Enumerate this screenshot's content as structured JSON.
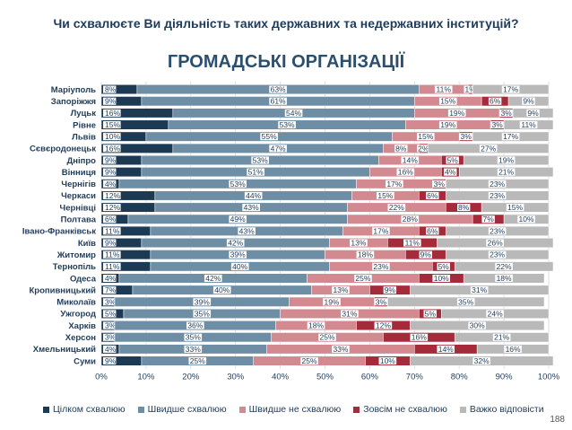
{
  "question": "Чи схвалюєте Ви діяльність таких державних та недержавних інституцій?",
  "subtitle": "ГРОМАДСЬКІ ОРГАНІЗАЦІЇ",
  "page_number": "188",
  "colors": {
    "full_approve": "#1d3a54",
    "rather_approve": "#6e8ea6",
    "rather_disapprove": "#d28a90",
    "full_disapprove": "#a52a3a",
    "hard_to_say": "#b9b9b9"
  },
  "legend": [
    {
      "label": "Цілком схвалюю",
      "color": "#1d3a54"
    },
    {
      "label": "Швидше схвалюю",
      "color": "#6e8ea6"
    },
    {
      "label": "Швидше не схвалюю",
      "color": "#d28a90"
    },
    {
      "label": "Зовсім не схвалюю",
      "color": "#a52a3a"
    },
    {
      "label": "Важко відповісти",
      "color": "#b9b9b9"
    }
  ],
  "chart_data": {
    "type": "bar",
    "orientation": "horizontal",
    "stacked": true,
    "title": "ГРОМАДСЬКІ ОРГАНІЗАЦІЇ",
    "xlim": [
      0,
      100
    ],
    "x_ticks": [
      "0%",
      "10%",
      "20%",
      "30%",
      "40%",
      "50%",
      "60%",
      "70%",
      "80%",
      "90%",
      "100%"
    ],
    "grid": true,
    "legend_position": "bottom",
    "categories": [
      "Маріуполь",
      "Запоріжжя",
      "Луцьк",
      "Рівне",
      "Львів",
      "Сєвєродонецьк",
      "Дніпро",
      "Вінниця",
      "Чернігів",
      "Черкаси",
      "Чернівці",
      "Полтава",
      "Івано-Франківськ",
      "Київ",
      "Житомир",
      "Тернопіль",
      "Одеса",
      "Кропивницький",
      "Миколаїв",
      "Ужгород",
      "Харків",
      "Херсон",
      "Хмельницький",
      "Суми"
    ],
    "series": [
      {
        "name": "Цілком схвалюю",
        "values": [
          8,
          9,
          16,
          15,
          10,
          16,
          9,
          9,
          4,
          12,
          12,
          6,
          11,
          9,
          11,
          11,
          4,
          7,
          3,
          5,
          3,
          3,
          4,
          9
        ],
        "labels": [
          "8%",
          "9%",
          "16%",
          "15%",
          "10%",
          "16%",
          "9%",
          "9%",
          "4%",
          "12%",
          "12%",
          "6%",
          "11%",
          "9%",
          "11%",
          "11%",
          "4%",
          "7%",
          "3%",
          "5%",
          "3%",
          "3%",
          "4%",
          "9%"
        ]
      },
      {
        "name": "Швидше схвалюю",
        "values": [
          63,
          61,
          54,
          53,
          55,
          47,
          53,
          51,
          53,
          44,
          43,
          49,
          43,
          42,
          39,
          40,
          42,
          40,
          39,
          35,
          36,
          35,
          33,
          25
        ],
        "labels": [
          "63%",
          "61%",
          "54%",
          "53%",
          "55%",
          "47%",
          "53%",
          "51%",
          "53%",
          "44%",
          "43%",
          "49%",
          "43%",
          "42%",
          "39%",
          "40%",
          "42%",
          "40%",
          "39%",
          "35%",
          "36%",
          "35%",
          "33%",
          "25%"
        ]
      },
      {
        "name": "Швидше не схвалюю",
        "values": [
          11,
          15,
          19,
          19,
          15,
          8,
          14,
          16,
          17,
          15,
          22,
          28,
          17,
          13,
          18,
          23,
          25,
          13,
          19,
          31,
          18,
          25,
          33,
          25
        ],
        "labels": [
          "11%",
          "15%",
          "19%",
          "19%",
          "15%",
          "8%",
          "14%",
          "16%",
          "17%",
          "15%",
          "22%",
          "28%",
          "17%",
          "13%",
          "18%",
          "23%",
          "25%",
          "13%",
          "19%",
          "31%",
          "18%",
          "25%",
          "33%",
          "25%"
        ]
      },
      {
        "name": "Зовсім не схвалюю",
        "values": [
          1,
          6,
          3,
          3,
          3,
          2,
          5,
          4,
          3,
          6,
          8,
          7,
          6,
          11,
          9,
          5,
          10,
          9,
          3,
          5,
          12,
          16,
          14,
          10
        ],
        "labels": [
          "1%",
          "6%",
          "3%",
          "3%",
          "3%",
          "2%",
          "5%",
          "4%",
          "3%",
          "6%",
          "8%",
          "7%",
          "6%",
          "11%",
          "9%",
          "5%",
          "10%",
          "9%",
          "3%",
          "5%",
          "12%",
          "16%",
          "14%",
          "10%"
        ]
      },
      {
        "name": "Важко відповісти",
        "values": [
          17,
          9,
          9,
          11,
          17,
          27,
          19,
          21,
          23,
          23,
          15,
          10,
          23,
          26,
          23,
          22,
          18,
          31,
          35,
          24,
          30,
          21,
          16,
          32
        ],
        "labels": [
          "17%",
          "9%",
          "9%",
          "11%",
          "17%",
          "27%",
          "19%",
          "21%",
          "23%",
          "23%",
          "15%",
          "10%",
          "23%",
          "26%",
          "23%",
          "22%",
          "18%",
          "31%",
          "35%",
          "24%",
          "30%",
          "21%",
          "16%",
          "32%"
        ]
      }
    ]
  }
}
